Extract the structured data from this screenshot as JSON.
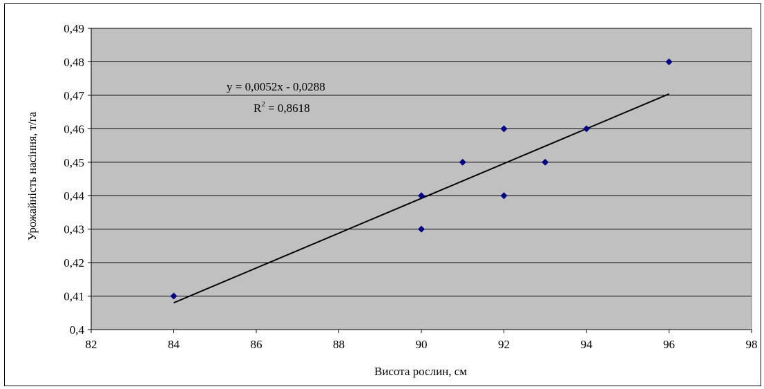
{
  "chart_data": {
    "type": "scatter",
    "xlabel": "Висота рослин, см",
    "ylabel": "Урожайність насіння, т/га",
    "xlim": [
      82,
      98
    ],
    "ylim": [
      0.4,
      0.49
    ],
    "x_ticks": [
      82,
      84,
      86,
      88,
      90,
      92,
      94,
      96,
      98
    ],
    "y_ticks": [
      0.4,
      0.41,
      0.42,
      0.43,
      0.44,
      0.45,
      0.46,
      0.47,
      0.48,
      0.49
    ],
    "x_tick_labels": [
      "82",
      "84",
      "86",
      "88",
      "90",
      "92",
      "94",
      "96",
      "98"
    ],
    "y_tick_labels": [
      "0,4",
      "0,41",
      "0,42",
      "0,43",
      "0,44",
      "0,45",
      "0,46",
      "0,47",
      "0,48",
      "0,49"
    ],
    "grid": "horizontal",
    "plot_background": "#c0c0c0",
    "marker_color": "#000080",
    "points": [
      {
        "x": 84,
        "y": 0.41
      },
      {
        "x": 90,
        "y": 0.44
      },
      {
        "x": 90,
        "y": 0.43
      },
      {
        "x": 91,
        "y": 0.45
      },
      {
        "x": 92,
        "y": 0.46
      },
      {
        "x": 92,
        "y": 0.44
      },
      {
        "x": 93,
        "y": 0.45
      },
      {
        "x": 94,
        "y": 0.46
      },
      {
        "x": 96,
        "y": 0.48
      }
    ],
    "trendline": {
      "slope": 0.0052,
      "intercept": -0.0288,
      "x_range": [
        84,
        96
      ]
    },
    "equation_text": "y = 0,0052x - 0,0288",
    "r2_prefix": "R",
    "r2_superscript": "2",
    "r2_value_text": " = 0,8618"
  }
}
